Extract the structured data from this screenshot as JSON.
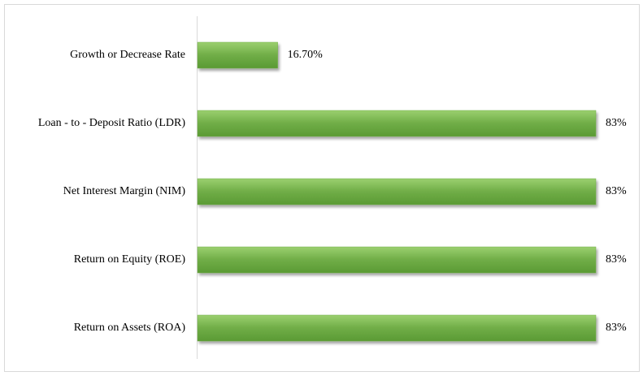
{
  "chart_data": {
    "type": "barh",
    "categories": [
      "Growth or Decrease Rate",
      "Loan - to - Deposit Ratio (LDR)",
      "Net Interest Margin (NIM)",
      "Return on Equity (ROE)",
      "Return on Assets (ROA)"
    ],
    "values": [
      16.7,
      83,
      83,
      83,
      83
    ],
    "value_labels": [
      "16.70%",
      "83%",
      "83%",
      "83%",
      "83%"
    ],
    "color": "#70ad47"
  }
}
